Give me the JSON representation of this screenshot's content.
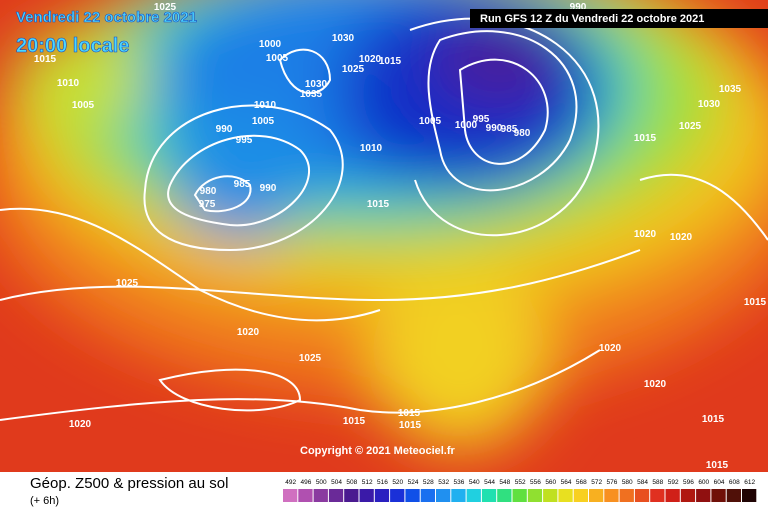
{
  "header": {
    "date": "Vendredi 22 octobre 2021",
    "time": "20:00 locale",
    "run": "Run GFS 12 Z du Vendredi 22 octobre 2021"
  },
  "copyright": "Copyright © 2021 Meteociel.fr",
  "footer": {
    "title": "Géop. Z500 & pression au sol",
    "subtitle": "(+ 6h)"
  },
  "scale": [
    "492",
    "496",
    "500",
    "504",
    "508",
    "512",
    "516",
    "520",
    "524",
    "528",
    "532",
    "536",
    "540",
    "544",
    "548",
    "552",
    "556",
    "560",
    "564",
    "568",
    "572",
    "576",
    "580",
    "584",
    "588",
    "592",
    "596",
    "600",
    "604",
    "608",
    "612"
  ],
  "isobar_labels": [
    "1015",
    "1010",
    "1005",
    "1025",
    "1000",
    "1005",
    "1030",
    "1020",
    "1015",
    "1025",
    "1030",
    "1035",
    "1010",
    "1005",
    "990",
    "995",
    "980",
    "975",
    "985",
    "990",
    "1010",
    "1015",
    "1005",
    "1000",
    "995",
    "990",
    "985",
    "980",
    "990",
    "1030",
    "1035",
    "1025",
    "1015",
    "1020",
    "1020",
    "1015",
    "1020",
    "1020",
    "1015",
    "1015",
    "1025",
    "1020",
    "1025",
    "1020",
    "1015",
    "1015",
    "1015"
  ]
}
